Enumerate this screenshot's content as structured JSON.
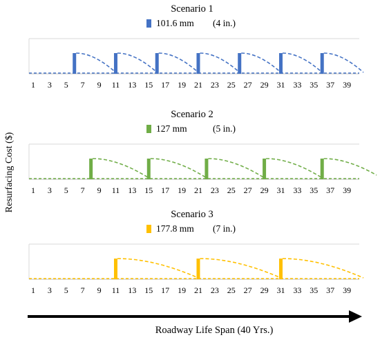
{
  "ylabel": "Resurfacing Cost ($)",
  "xlabel": "Roadway Life Span (40 Yrs.)",
  "chart_data": [
    {
      "type": "bar",
      "title": "Scenario 1",
      "legend": {
        "name": "101.6 mm",
        "note": "(4 in.)"
      },
      "color": "#4472C4",
      "x_ticks": [
        "1",
        "3",
        "5",
        "7",
        "9",
        "11",
        "13",
        "15",
        "17",
        "19",
        "21",
        "23",
        "25",
        "27",
        "29",
        "31",
        "33",
        "35",
        "37",
        "39"
      ],
      "xlim": [
        1,
        40
      ],
      "resurfacing_years": [
        6,
        11,
        16,
        21,
        26,
        31,
        36
      ]
    },
    {
      "type": "bar",
      "title": "Scenario 2",
      "legend": {
        "name": "127 mm",
        "note": "(5 in.)"
      },
      "color": "#70AD47",
      "x_ticks": [
        "1",
        "3",
        "5",
        "7",
        "9",
        "11",
        "13",
        "15",
        "17",
        "19",
        "21",
        "23",
        "25",
        "27",
        "29",
        "31",
        "33",
        "35",
        "37",
        "39"
      ],
      "xlim": [
        1,
        40
      ],
      "resurfacing_years": [
        8,
        15,
        22,
        29,
        36
      ]
    },
    {
      "type": "bar",
      "title": "Scenario 3",
      "legend": {
        "name": "177.8 mm",
        "note": "(7 in.)"
      },
      "color": "#FFC000",
      "x_ticks": [
        "1",
        "3",
        "5",
        "7",
        "9",
        "11",
        "13",
        "15",
        "17",
        "19",
        "21",
        "23",
        "25",
        "27",
        "29",
        "31",
        "33",
        "35",
        "37",
        "39"
      ],
      "xlim": [
        1,
        40
      ],
      "resurfacing_years": [
        11,
        21,
        31
      ]
    }
  ]
}
